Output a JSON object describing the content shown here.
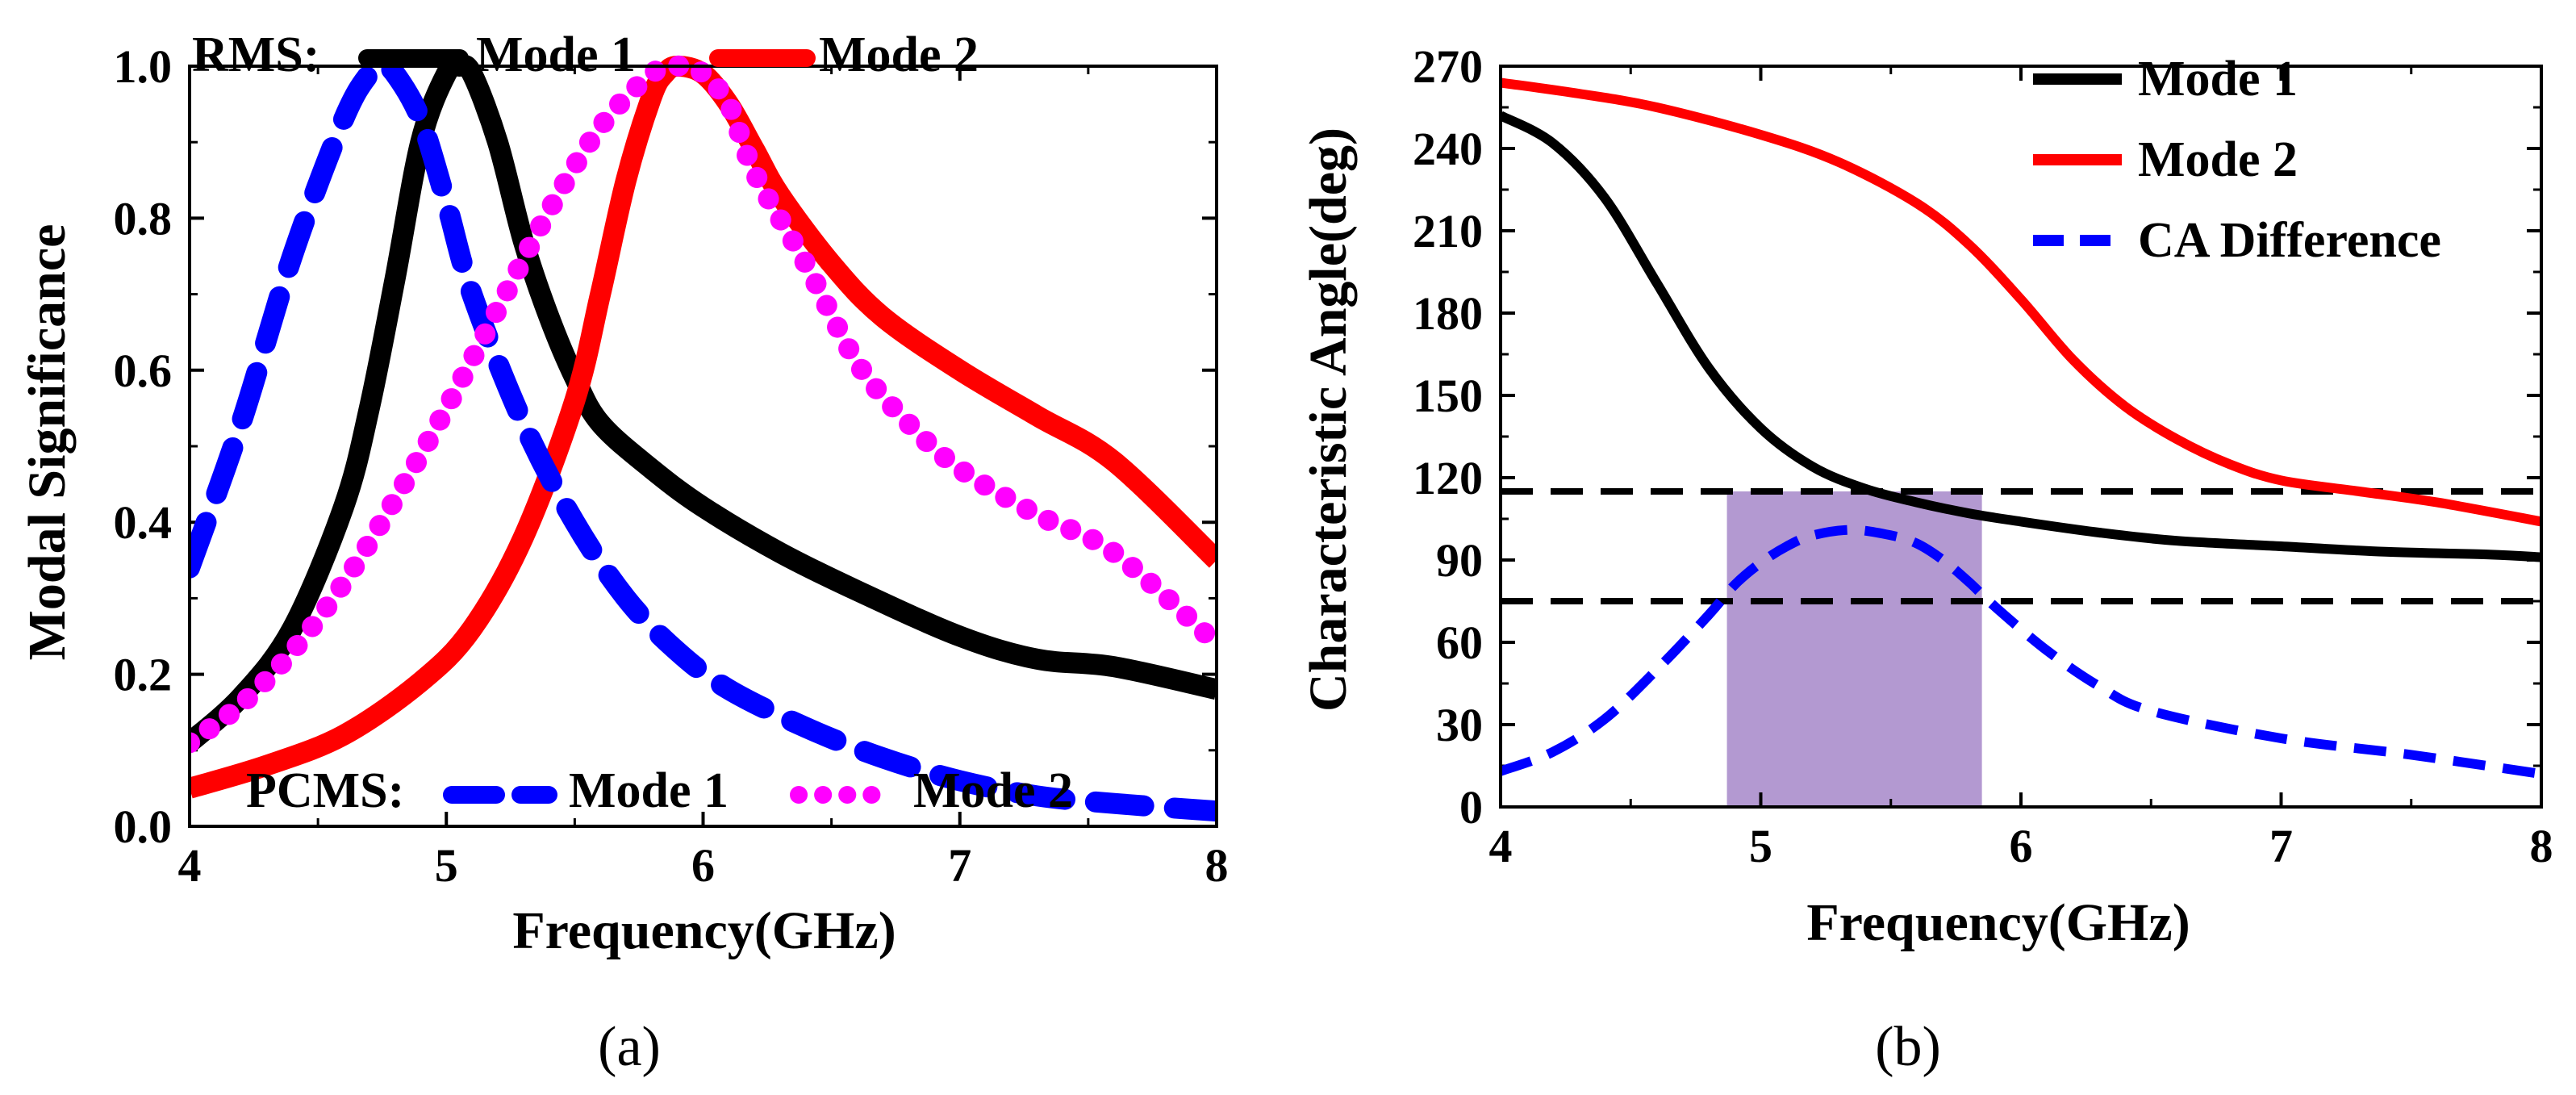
{
  "colors": {
    "black": "#000000",
    "red": "#ff0000",
    "blue": "#0000ff",
    "magenta": "#ff00ff",
    "band": "#b399d1"
  },
  "chart_data": [
    {
      "type": "line",
      "panel": "a",
      "caption": "(a)",
      "xlabel": "Frequency(GHz)",
      "ylabel": "Modal Significance",
      "xlim": [
        4,
        8
      ],
      "ylim": [
        0,
        1.0
      ],
      "x_ticks": [
        4,
        5,
        6,
        7,
        8
      ],
      "x_tick_labels": [
        "4",
        "5",
        "6",
        "7",
        "8"
      ],
      "y_ticks": [
        0,
        0.2,
        0.4,
        0.6,
        0.8,
        1.0
      ],
      "y_tick_labels": [
        "0.0",
        "0.2",
        "0.4",
        "0.6",
        "0.8",
        "1.0"
      ],
      "legend_groups": [
        {
          "group_label": "RMS:",
          "placement": "top",
          "entries": [
            "Mode 1",
            "Mode 2"
          ]
        },
        {
          "group_label": "PCMS:",
          "placement": "bottom",
          "entries": [
            "Mode 1",
            "Mode 2"
          ]
        }
      ],
      "series": [
        {
          "name": "RMS: Mode 1",
          "legend_label": "Mode 1",
          "color": "#000000",
          "style": "solid",
          "x": [
            4.0,
            4.2,
            4.4,
            4.6,
            4.7,
            4.8,
            4.9,
            5.0,
            5.05,
            5.1,
            5.2,
            5.3,
            5.4,
            5.5,
            5.6,
            5.8,
            6.0,
            6.3,
            6.6,
            7.0,
            7.3,
            7.6,
            8.0
          ],
          "y": [
            0.11,
            0.17,
            0.26,
            0.42,
            0.55,
            0.72,
            0.9,
            0.99,
            1.0,
            0.99,
            0.9,
            0.77,
            0.67,
            0.59,
            0.53,
            0.47,
            0.42,
            0.36,
            0.31,
            0.25,
            0.22,
            0.21,
            0.18
          ]
        },
        {
          "name": "RMS: Mode 2",
          "legend_label": "Mode 2",
          "color": "#ff0000",
          "style": "solid",
          "x": [
            4.0,
            4.3,
            4.6,
            4.9,
            5.1,
            5.3,
            5.5,
            5.6,
            5.7,
            5.8,
            5.85,
            5.9,
            6.0,
            6.1,
            6.2,
            6.3,
            6.5,
            6.7,
            7.0,
            7.3,
            7.6,
            8.0
          ],
          "y": [
            0.05,
            0.08,
            0.12,
            0.19,
            0.26,
            0.38,
            0.56,
            0.7,
            0.85,
            0.96,
            0.99,
            1.0,
            0.99,
            0.95,
            0.89,
            0.83,
            0.74,
            0.67,
            0.6,
            0.54,
            0.48,
            0.35
          ]
        },
        {
          "name": "PCMS: Mode 1",
          "legend_label": "Mode 1",
          "color": "#0000ff",
          "style": "dash",
          "x": [
            4.0,
            4.2,
            4.4,
            4.6,
            4.7,
            4.75,
            4.8,
            4.9,
            5.0,
            5.1,
            5.3,
            5.5,
            5.7,
            5.9,
            6.1,
            6.4,
            6.7,
            7.0,
            7.3,
            7.6,
            8.0
          ],
          "y": [
            0.34,
            0.53,
            0.75,
            0.93,
            0.99,
            1.0,
            0.99,
            0.93,
            0.82,
            0.7,
            0.53,
            0.4,
            0.3,
            0.23,
            0.18,
            0.13,
            0.09,
            0.06,
            0.04,
            0.03,
            0.02
          ]
        },
        {
          "name": "PCMS: Mode 2",
          "legend_label": "Mode 2",
          "color": "#ff00ff",
          "style": "dot",
          "x": [
            4.0,
            4.2,
            4.4,
            4.6,
            4.8,
            5.0,
            5.2,
            5.4,
            5.6,
            5.8,
            5.9,
            5.95,
            6.0,
            6.1,
            6.2,
            6.4,
            6.6,
            6.8,
            7.0,
            7.3,
            7.6,
            8.0
          ],
          "y": [
            0.11,
            0.16,
            0.23,
            0.32,
            0.43,
            0.55,
            0.68,
            0.81,
            0.92,
            0.99,
            1.0,
            1.0,
            0.99,
            0.95,
            0.86,
            0.74,
            0.61,
            0.53,
            0.47,
            0.41,
            0.36,
            0.24
          ]
        }
      ]
    },
    {
      "type": "line",
      "panel": "b",
      "caption": "(b)",
      "xlabel": "Frequency(GHz)",
      "ylabel": "Characteristic Angle(deg)",
      "xlim": [
        4,
        8
      ],
      "ylim": [
        0,
        270
      ],
      "x_ticks": [
        4,
        5,
        6,
        7,
        8
      ],
      "x_tick_labels": [
        "4",
        "5",
        "6",
        "7",
        "8"
      ],
      "y_ticks": [
        0,
        30,
        60,
        90,
        120,
        150,
        180,
        210,
        240,
        270
      ],
      "y_tick_labels": [
        "0",
        "30",
        "60",
        "90",
        "120",
        "150",
        "180",
        "210",
        "240",
        "270"
      ],
      "legend_placement": "top-right",
      "reference_lines": [
        115,
        75
      ],
      "shaded_band": {
        "x_start": 4.87,
        "x_end": 5.85,
        "y_start": 0,
        "y_end": 115
      },
      "series": [
        {
          "name": "Mode 1",
          "color": "#000000",
          "style": "solid",
          "x": [
            4.0,
            4.2,
            4.4,
            4.6,
            4.8,
            5.0,
            5.2,
            5.4,
            5.6,
            5.8,
            6.0,
            6.3,
            6.6,
            7.0,
            7.4,
            7.8,
            8.0
          ],
          "y": [
            252,
            242,
            222,
            191,
            160,
            138,
            124,
            116,
            111,
            107,
            104,
            100,
            97,
            95,
            93,
            92,
            91
          ]
        },
        {
          "name": "Mode 2",
          "color": "#ff0000",
          "style": "solid",
          "x": [
            4.0,
            4.3,
            4.6,
            5.0,
            5.3,
            5.6,
            5.8,
            6.0,
            6.2,
            6.4,
            6.6,
            6.8,
            7.0,
            7.3,
            7.6,
            8.0
          ],
          "y": [
            264,
            260,
            255,
            245,
            235,
            220,
            205,
            185,
            163,
            146,
            134,
            125,
            119,
            115,
            111,
            104
          ]
        },
        {
          "name": "CA Difference",
          "color": "#0000ff",
          "style": "dash",
          "x": [
            4.0,
            4.2,
            4.4,
            4.6,
            4.8,
            4.9,
            5.0,
            5.1,
            5.2,
            5.35,
            5.5,
            5.6,
            5.7,
            5.8,
            5.9,
            6.1,
            6.3,
            6.5,
            7.0,
            7.5,
            8.0
          ],
          "y": [
            13,
            20,
            32,
            50,
            70,
            81,
            89,
            95,
            99,
            101,
            99,
            96,
            90,
            82,
            73,
            57,
            44,
            35,
            25,
            19,
            12
          ]
        }
      ]
    }
  ]
}
